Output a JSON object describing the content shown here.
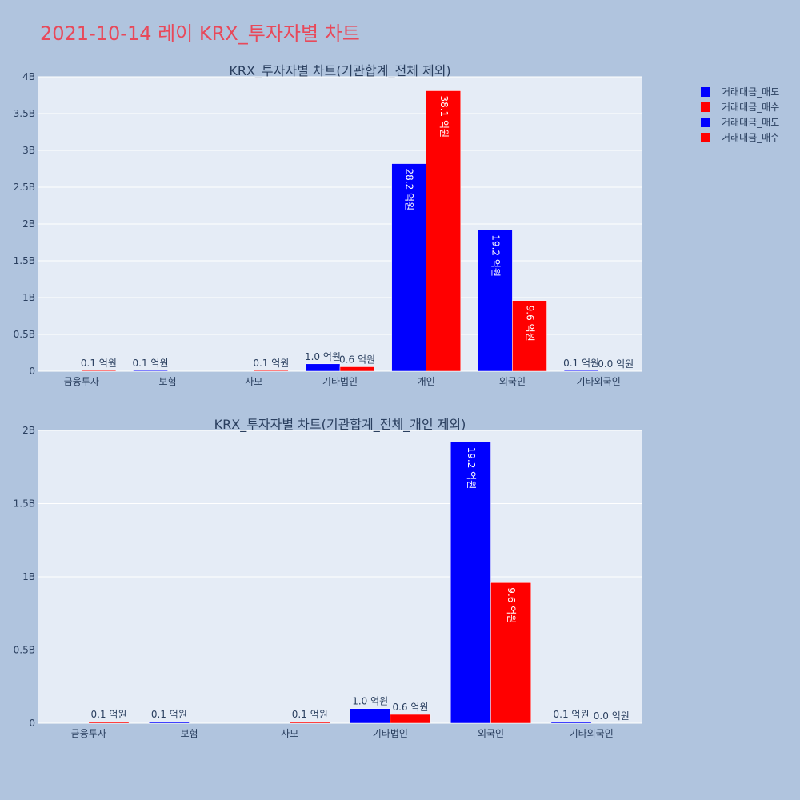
{
  "title": "2021-10-14 레이 KRX_투자자별 차트",
  "colors": {
    "sell": "#0000ff",
    "buy": "#ff0000"
  },
  "legend": [
    "거래대금_매도",
    "거래대금_매수",
    "거래대금_매도",
    "거래대금_매수"
  ],
  "chart_data": [
    {
      "type": "bar",
      "title": "KRX_투자자별 차트(기관합계_전체 제외)",
      "categories": [
        "금융투자",
        "보험",
        "사모",
        "기타법인",
        "개인",
        "외국인",
        "기타외국인"
      ],
      "y_ticks": [
        "0",
        "0.5B",
        "1B",
        "1.5B",
        "2B",
        "2.5B",
        "3B",
        "3.5B",
        "4B"
      ],
      "ylim": [
        0,
        4000000000
      ],
      "grid": true,
      "legend_position": "top-right",
      "series": [
        {
          "name": "거래대금_매도",
          "values": [
            0,
            10000000,
            0,
            100000000,
            2820000000,
            1920000000,
            10000000
          ],
          "labels": [
            "",
            "0.1 억원",
            "",
            "1.0 억원",
            "28.2 억원",
            "19.2 억원",
            "0.1 억원"
          ]
        },
        {
          "name": "거래대금_매수",
          "values": [
            10000000,
            0,
            10000000,
            60000000,
            3810000000,
            960000000,
            0
          ],
          "labels": [
            "0.1 억원",
            "",
            "0.1 억원",
            "0.6 억원",
            "38.1 억원",
            "9.6 억원",
            "0.0 억원"
          ]
        }
      ]
    },
    {
      "type": "bar",
      "title": "KRX_투자자별 차트(기관합계_전체_개인 제외)",
      "categories": [
        "금융투자",
        "보험",
        "사모",
        "기타법인",
        "외국인",
        "기타외국인"
      ],
      "y_ticks": [
        "0",
        "0.5B",
        "1B",
        "1.5B",
        "2B"
      ],
      "ylim": [
        0,
        2000000000
      ],
      "grid": true,
      "legend_position": "top-right",
      "series": [
        {
          "name": "거래대금_매도",
          "values": [
            0,
            10000000,
            0,
            100000000,
            1920000000,
            10000000
          ],
          "labels": [
            "",
            "0.1 억원",
            "",
            "1.0 억원",
            "19.2 억원",
            "0.1 억원"
          ]
        },
        {
          "name": "거래대금_매수",
          "values": [
            10000000,
            0,
            10000000,
            60000000,
            960000000,
            0
          ],
          "labels": [
            "0.1 억원",
            "",
            "0.1 억원",
            "0.6 억원",
            "9.6 억원",
            "0.0 억원"
          ]
        }
      ]
    }
  ]
}
